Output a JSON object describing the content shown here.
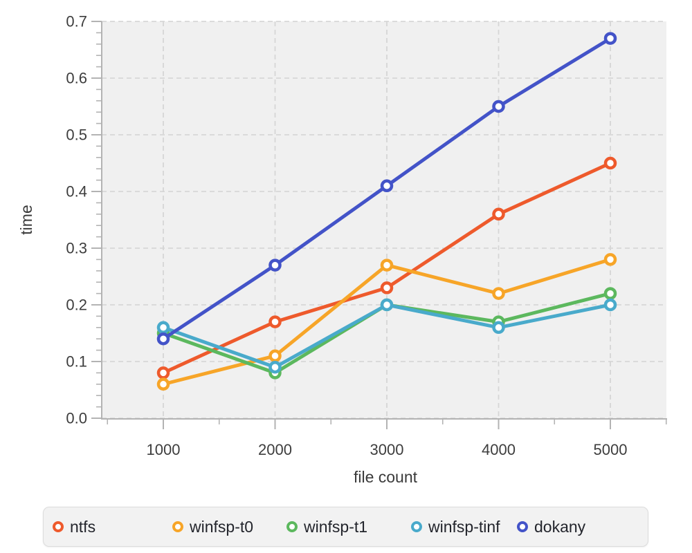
{
  "figure": {
    "background": "#ffffff",
    "plot_background": "#f0f0f0",
    "grid_color": "#d6d6d6",
    "spine_color": "#b3b3b3",
    "tick_color": "#b3b3b3",
    "tick_label_color": "#3d3d3d",
    "axis_title_color": "#3a3a3a",
    "legend_background": "#f2f2f2",
    "legend_border": "#dcdcdc",
    "legend_text_color": "#23252c"
  },
  "chart_data": {
    "type": "line",
    "title": "",
    "xlabel": "file count",
    "ylabel": "time",
    "x": [
      1000,
      2000,
      3000,
      4000,
      5000
    ],
    "xlim": [
      450,
      5500
    ],
    "ylim": [
      0.0,
      0.7
    ],
    "x_major_ticks": [
      1000,
      2000,
      3000,
      4000,
      5000
    ],
    "x_tick_labels": [
      "1000",
      "2000",
      "3000",
      "4000",
      "5000"
    ],
    "x_minor_ticks": [
      500,
      1500,
      2500,
      3500,
      4500,
      5500
    ],
    "y_major_ticks": [
      0.0,
      0.1,
      0.2,
      0.3,
      0.4,
      0.5,
      0.6,
      0.7
    ],
    "y_tick_labels": [
      "0.0",
      "0.1",
      "0.2",
      "0.3",
      "0.4",
      "0.5",
      "0.6",
      "0.7"
    ],
    "y_minor_tick_step": 0.02,
    "grid": "dashed-major",
    "legend_position": "bottom",
    "marker": "open-circle",
    "series": [
      {
        "name": "ntfs",
        "color": "#ee5a2c",
        "values": [
          0.08,
          0.17,
          0.23,
          0.36,
          0.45
        ]
      },
      {
        "name": "winfsp-t0",
        "color": "#f7a528",
        "values": [
          0.06,
          0.11,
          0.27,
          0.22,
          0.28
        ]
      },
      {
        "name": "winfsp-t1",
        "color": "#5cb85e",
        "values": [
          0.15,
          0.08,
          0.2,
          0.17,
          0.22
        ]
      },
      {
        "name": "winfsp-tinf",
        "color": "#49aacb",
        "values": [
          0.16,
          0.09,
          0.2,
          0.16,
          0.2
        ]
      },
      {
        "name": "dokany",
        "color": "#4353c8",
        "values": [
          0.14,
          0.27,
          0.41,
          0.55,
          0.67
        ]
      }
    ]
  }
}
